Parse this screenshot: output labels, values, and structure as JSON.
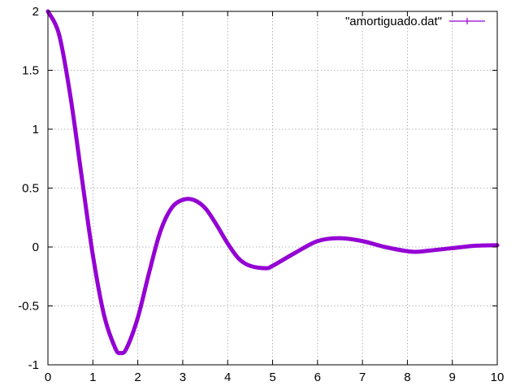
{
  "chart_data": {
    "type": "line",
    "title": "",
    "xlabel": "",
    "ylabel": "",
    "xlim": [
      0,
      10
    ],
    "ylim": [
      -1,
      2
    ],
    "xticks": [
      "0",
      "1",
      "2",
      "3",
      "4",
      "5",
      "6",
      "7",
      "8",
      "9",
      "10"
    ],
    "yticks": [
      "-1",
      "-0.5",
      "0",
      "0.5",
      "1",
      "1.5",
      "2"
    ],
    "grid": true,
    "legend_position": "top-right",
    "series": [
      {
        "name": "\"amortiguado.dat\"",
        "color": "#9400d3",
        "x": [
          0,
          0.25,
          0.5,
          0.75,
          1.0,
          1.25,
          1.5,
          1.62,
          1.75,
          2.0,
          2.25,
          2.5,
          2.75,
          3.0,
          3.24,
          3.5,
          3.75,
          4.0,
          4.25,
          4.5,
          4.84,
          5.0,
          5.5,
          6.0,
          6.48,
          7.0,
          7.5,
          8.1,
          8.5,
          9.0,
          9.5,
          10.0
        ],
        "y": [
          2.0,
          1.8,
          1.28,
          0.6,
          -0.07,
          -0.58,
          -0.86,
          -0.9,
          -0.86,
          -0.6,
          -0.22,
          0.13,
          0.33,
          0.4,
          0.4,
          0.33,
          0.19,
          0.03,
          -0.1,
          -0.16,
          -0.18,
          -0.16,
          -0.05,
          0.05,
          0.075,
          0.05,
          0.0,
          -0.04,
          -0.03,
          -0.01,
          0.01,
          0.015
        ]
      }
    ]
  }
}
